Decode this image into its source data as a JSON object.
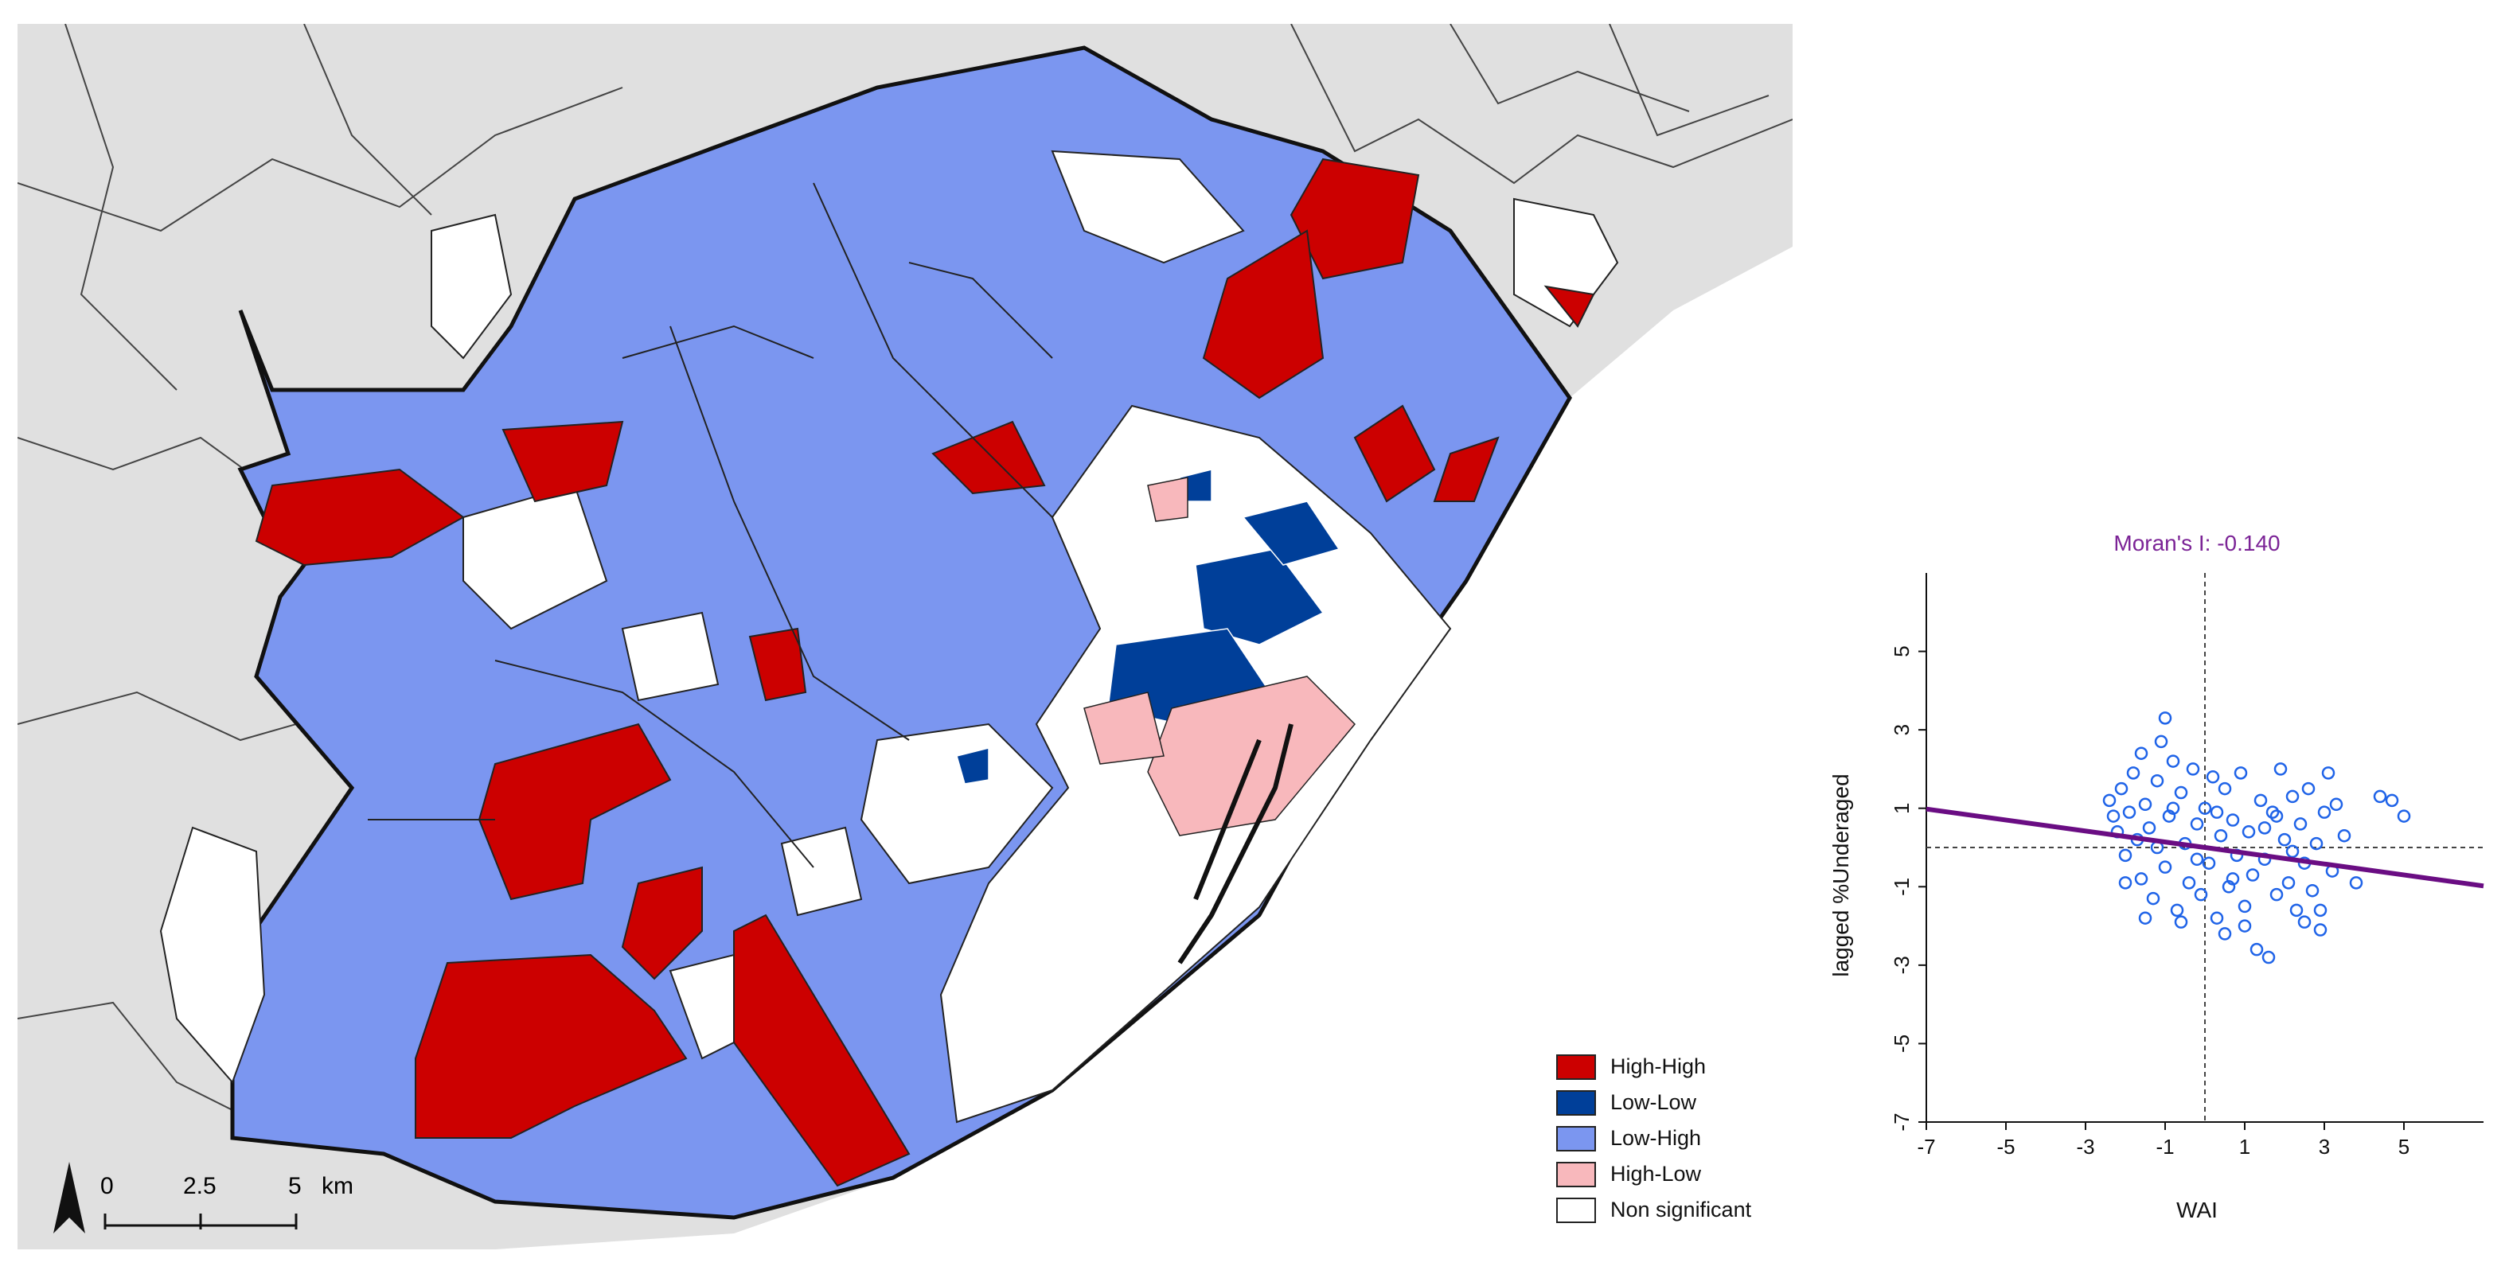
{
  "map": {
    "legend": [
      {
        "label": "High-High",
        "color": "#cc0000"
      },
      {
        "label": "Low-Low",
        "color": "#003f99"
      },
      {
        "label": "Low-High",
        "color": "#7b96f0"
      },
      {
        "label": "High-Low",
        "color": "#f8b8bc"
      },
      {
        "label": "Non significant",
        "color": "#ffffff"
      }
    ],
    "scale_bar": {
      "ticks": [
        "0",
        "2.5",
        "5"
      ],
      "unit": "km"
    },
    "north_arrow": "north-arrow-icon",
    "colors": {
      "background_land": "#e0e0e0",
      "sea": "#ffffff",
      "boundary": "#111111"
    }
  },
  "chart_data": {
    "type": "scatter",
    "title": "Moran's I: -0.140",
    "xlabel": "WAI",
    "ylabel": "lagged %Underaged",
    "xlim": [
      -7,
      7
    ],
    "ylim": [
      -7,
      7
    ],
    "x_ticks": [
      "-7",
      "-5",
      "-3",
      "-1",
      "1",
      "3",
      "5"
    ],
    "y_ticks": [
      "5",
      "3",
      "1",
      "-1",
      "-3",
      "-5",
      "-7"
    ],
    "regression_line": {
      "slope": -0.14,
      "intercept": 0,
      "color": "#6a0d83"
    },
    "reference_lines": {
      "x": 0,
      "y": 0
    },
    "point_color": "#1f63e8",
    "title_color": "#7b2396",
    "points": [
      [
        -2.4,
        1.2
      ],
      [
        -2.3,
        0.8
      ],
      [
        -2.2,
        0.4
      ],
      [
        -2.1,
        1.5
      ],
      [
        -2.0,
        -0.2
      ],
      [
        -1.9,
        0.9
      ],
      [
        -1.8,
        1.9
      ],
      [
        -1.7,
        0.2
      ],
      [
        -1.6,
        -0.8
      ],
      [
        -1.6,
        2.4
      ],
      [
        -1.5,
        1.1
      ],
      [
        -1.4,
        0.5
      ],
      [
        -1.3,
        -1.3
      ],
      [
        -1.2,
        1.7
      ],
      [
        -1.1,
        2.7
      ],
      [
        -1.0,
        3.3
      ],
      [
        -1.0,
        -0.5
      ],
      [
        -0.9,
        0.8
      ],
      [
        -0.8,
        2.2
      ],
      [
        -0.7,
        -1.6
      ],
      [
        -0.6,
        1.4
      ],
      [
        -0.5,
        0.1
      ],
      [
        -0.4,
        -0.9
      ],
      [
        -0.3,
        2.0
      ],
      [
        -0.2,
        0.6
      ],
      [
        -0.1,
        -1.2
      ],
      [
        0.0,
        1.0
      ],
      [
        0.1,
        -0.4
      ],
      [
        0.2,
        1.8
      ],
      [
        0.3,
        -1.8
      ],
      [
        0.4,
        0.3
      ],
      [
        0.5,
        1.5
      ],
      [
        0.6,
        -1.0
      ],
      [
        0.7,
        0.7
      ],
      [
        0.8,
        -0.2
      ],
      [
        0.9,
        1.9
      ],
      [
        1.0,
        -1.5
      ],
      [
        1.1,
        0.4
      ],
      [
        1.2,
        -0.7
      ],
      [
        1.3,
        -2.6
      ],
      [
        1.4,
        1.2
      ],
      [
        1.5,
        -0.3
      ],
      [
        1.6,
        -2.8
      ],
      [
        1.7,
        0.9
      ],
      [
        1.8,
        -1.2
      ],
      [
        1.9,
        2.0
      ],
      [
        2.0,
        0.2
      ],
      [
        2.1,
        -0.9
      ],
      [
        2.2,
        1.3
      ],
      [
        2.3,
        -1.6
      ],
      [
        2.4,
        0.6
      ],
      [
        2.5,
        -0.4
      ],
      [
        2.6,
        1.5
      ],
      [
        2.7,
        -1.1
      ],
      [
        2.8,
        0.1
      ],
      [
        2.9,
        -2.1
      ],
      [
        3.0,
        0.9
      ],
      [
        3.1,
        1.9
      ],
      [
        3.2,
        -0.6
      ],
      [
        3.3,
        1.1
      ],
      [
        3.5,
        0.3
      ],
      [
        3.8,
        -0.9
      ],
      [
        4.4,
        1.3
      ],
      [
        4.7,
        1.2
      ],
      [
        5.0,
        0.8
      ],
      [
        -2.0,
        -0.9
      ],
      [
        -1.5,
        -1.8
      ],
      [
        -0.6,
        -1.9
      ],
      [
        0.5,
        -2.2
      ],
      [
        1.0,
        -2.0
      ],
      [
        2.5,
        -1.9
      ],
      [
        2.9,
        -1.6
      ],
      [
        -1.2,
        0.0
      ],
      [
        -0.2,
        -0.3
      ],
      [
        0.7,
        -0.8
      ],
      [
        1.5,
        0.5
      ],
      [
        2.2,
        -0.1
      ],
      [
        -0.8,
        1.0
      ],
      [
        0.3,
        0.9
      ],
      [
        1.8,
        0.8
      ]
    ]
  }
}
